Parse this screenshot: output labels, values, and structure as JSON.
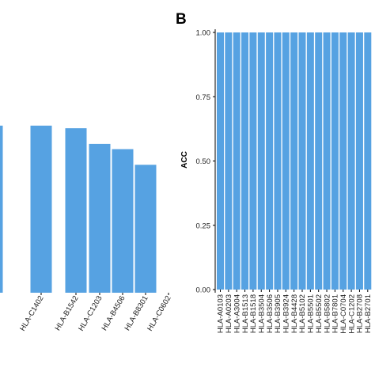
{
  "chart_data": [
    {
      "type": "bar",
      "panel": "",
      "categories": [
        "",
        "HLA-C1402",
        "HLA-B1542",
        "HLA-C1203",
        "HLA-B4506",
        "HLA-B8301",
        "HLA-C0602"
      ],
      "values": [
        0.64,
        0.64,
        0.63,
        0.57,
        0.55,
        0.49,
        0.0
      ],
      "bar_color": "#56a2e2",
      "ylim": [
        0,
        1
      ],
      "xlabel": "",
      "ylabel": "",
      "grid": false
    },
    {
      "type": "bar",
      "panel": "B",
      "categories": [
        "HLA-A0103",
        "HLA-A0203",
        "HLA-A3004",
        "HLA-B1513",
        "HLA-B1518",
        "HLA-B3504",
        "HLA-B3506",
        "HLA-B3905",
        "HLA-B3924",
        "HLA-B4428",
        "HLA-B5102",
        "HLA-B5501",
        "HLA-B5502",
        "HLA-B5802",
        "HLA-B7801",
        "HLA-C0704",
        "HLA-C1202",
        "HLA-B2708",
        "HLA-B2701"
      ],
      "values": [
        1,
        1,
        1,
        1,
        1,
        1,
        1,
        1,
        1,
        1,
        1,
        1,
        1,
        1,
        1,
        1,
        1,
        1,
        1
      ],
      "bar_color": "#56a2e2",
      "ylim": [
        0,
        1
      ],
      "yticks": [
        "0.00",
        "0.25",
        "0.50",
        "0.75",
        "1.00"
      ],
      "ylabel": "ACC",
      "xlabel": "",
      "grid": false
    }
  ]
}
